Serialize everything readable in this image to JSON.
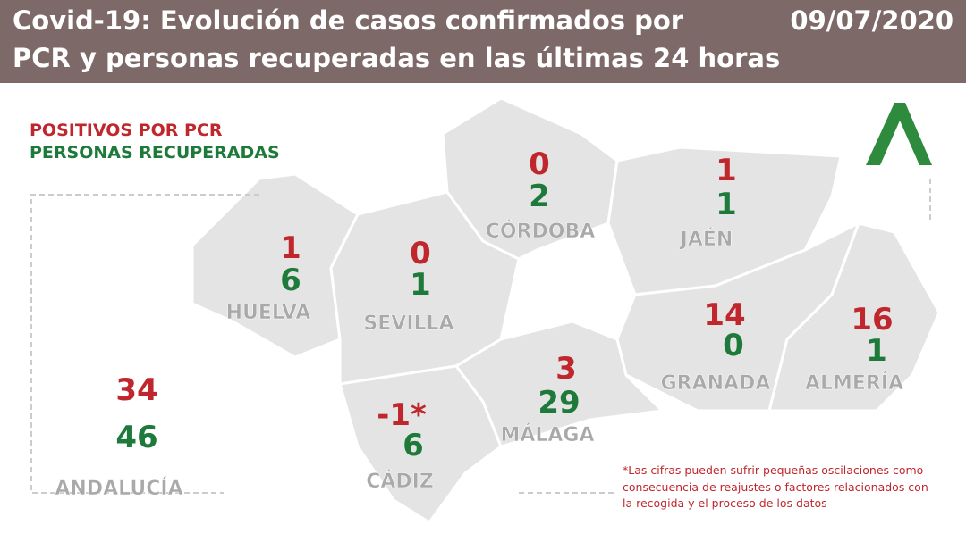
{
  "header": {
    "title_lines": [
      "Covid-19: Evolución de casos confirmados por",
      "PCR y personas recuperadas en las últimas 24 horas"
    ],
    "date": "09/07/2020"
  },
  "legend": {
    "positives": "POSITIVOS POR PCR",
    "recovered": "PERSONAS RECUPERADAS"
  },
  "provinces": [
    {
      "name": "HUELVA",
      "positives": "1",
      "recovered": "6"
    },
    {
      "name": "SEVILLA",
      "positives": "0",
      "recovered": "1"
    },
    {
      "name": "CÓRDOBA",
      "positives": "0",
      "recovered": "2"
    },
    {
      "name": "JAÉN",
      "positives": "1",
      "recovered": "1"
    },
    {
      "name": "GRANADA",
      "positives": "14",
      "recovered": "0"
    },
    {
      "name": "ALMERÍA",
      "positives": "16",
      "recovered": "1"
    },
    {
      "name": "MÁLAGA",
      "positives": "3",
      "recovered": "29"
    },
    {
      "name": "CÁDIZ",
      "positives": "-1*",
      "recovered": "6"
    }
  ],
  "total": {
    "name": "ANDALUCÍA",
    "positives": "34",
    "recovered": "46"
  },
  "footnote": [
    "*Las cifras pueden sufrir pequeñas oscilaciones como",
    "consecuencia de reajustes o factores relacionados con",
    "la recogida y el proceso de los datos"
  ]
}
